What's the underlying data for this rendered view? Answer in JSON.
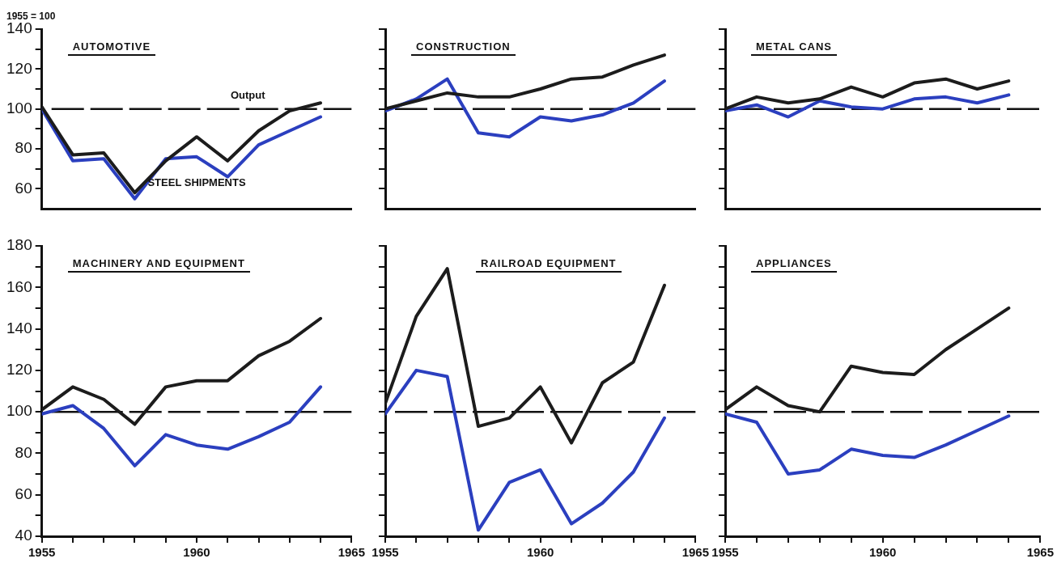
{
  "chart_data": [
    {
      "type": "line",
      "title": "AUTOMOTIVE",
      "ylabel": "1955 = 100",
      "tick_labels": "y",
      "x": [
        1955,
        1956,
        1957,
        1958,
        1959,
        1960,
        1961,
        1962,
        1963,
        1964
      ],
      "series": [
        {
          "name": "Output",
          "color": "#1c1c1c",
          "values": [
            101,
            77,
            78,
            58,
            74,
            86,
            74,
            89,
            99,
            103
          ]
        },
        {
          "name": "STEEL SHIPMENTS",
          "color": "#2b3fbf",
          "values": [
            100,
            74,
            75,
            55,
            75,
            76,
            66,
            82,
            89,
            96
          ]
        }
      ],
      "xlim": [
        1955,
        1965
      ],
      "xticks": [
        1955,
        1960,
        1965
      ],
      "ylim": [
        50,
        140
      ],
      "yticks": [
        60,
        {
          "value": 70,
          "label": null
        },
        80,
        {
          "value": 90,
          "label": null
        },
        100,
        {
          "value": 110,
          "label": null
        },
        120,
        {
          "value": 130,
          "label": null
        },
        140
      ],
      "ref_lines": [
        {
          "axis": "y",
          "value": 100,
          "line_style": "dashed"
        }
      ]
    },
    {
      "type": "line",
      "title": "CONSTRUCTION",
      "tick_labels": false,
      "x": [
        1955,
        1956,
        1957,
        1958,
        1959,
        1960,
        1961,
        1962,
        1963,
        1964
      ],
      "series": [
        {
          "color": "#1c1c1c",
          "values": [
            100,
            104,
            108,
            106,
            106,
            110,
            115,
            116,
            122,
            127
          ]
        },
        {
          "color": "#2b3fbf",
          "values": [
            99,
            105,
            115,
            88,
            86,
            96,
            94,
            97,
            103,
            114
          ]
        }
      ],
      "xlim": [
        1955,
        1965
      ],
      "xticks": [
        1955,
        1960,
        1965
      ],
      "ylim": [
        50,
        140
      ],
      "yticks": [
        60,
        {
          "value": 70,
          "label": null
        },
        80,
        {
          "value": 90,
          "label": null
        },
        100,
        {
          "value": 110,
          "label": null
        },
        120,
        {
          "value": 130,
          "label": null
        },
        140
      ],
      "ref_lines": [
        {
          "axis": "y",
          "value": 100,
          "line_style": "dashed"
        }
      ]
    },
    {
      "type": "line",
      "title": "METAL CANS",
      "tick_labels": false,
      "x": [
        1955,
        1956,
        1957,
        1958,
        1959,
        1960,
        1961,
        1962,
        1963,
        1964
      ],
      "series": [
        {
          "color": "#1c1c1c",
          "values": [
            100,
            106,
            103,
            105,
            111,
            106,
            113,
            115,
            110,
            114
          ]
        },
        {
          "color": "#2b3fbf",
          "values": [
            99,
            102,
            96,
            104,
            101,
            100,
            105,
            106,
            103,
            107
          ]
        }
      ],
      "xlim": [
        1955,
        1965
      ],
      "xticks": [
        1955,
        1960,
        1965
      ],
      "ylim": [
        50,
        140
      ],
      "yticks": [
        60,
        {
          "value": 70,
          "label": null
        },
        80,
        {
          "value": 90,
          "label": null
        },
        100,
        {
          "value": 110,
          "label": null
        },
        120,
        {
          "value": 130,
          "label": null
        },
        140
      ],
      "ref_lines": [
        {
          "axis": "y",
          "value": 100,
          "line_style": "dashed"
        }
      ]
    },
    {
      "type": "line",
      "title": "MACHINERY AND EQUIPMENT",
      "x": [
        1955,
        1956,
        1957,
        1958,
        1959,
        1960,
        1961,
        1962,
        1963,
        1964
      ],
      "series": [
        {
          "color": "#1c1c1c",
          "values": [
            101,
            112,
            106,
            94,
            112,
            115,
            115,
            127,
            134,
            145
          ]
        },
        {
          "color": "#2b3fbf",
          "values": [
            99,
            103,
            92,
            74,
            89,
            84,
            82,
            88,
            95,
            112
          ]
        }
      ],
      "xlim": [
        1955,
        1965
      ],
      "xticks": [
        1955,
        {
          "value": 1956,
          "label": null
        },
        {
          "value": 1957,
          "label": null
        },
        {
          "value": 1958,
          "label": null
        },
        {
          "value": 1959,
          "label": null
        },
        1960,
        {
          "value": 1961,
          "label": null
        },
        {
          "value": 1962,
          "label": null
        },
        {
          "value": 1963,
          "label": null
        },
        {
          "value": 1964,
          "label": null
        },
        1965
      ],
      "ylim": [
        40,
        180
      ],
      "yticks": [
        40,
        {
          "value": 50,
          "label": null
        },
        60,
        {
          "value": 70,
          "label": null
        },
        80,
        {
          "value": 90,
          "label": null
        },
        100,
        {
          "value": 110,
          "label": null
        },
        120,
        {
          "value": 130,
          "label": null
        },
        140,
        {
          "value": 150,
          "label": null
        },
        160,
        {
          "value": 170,
          "label": null
        },
        180
      ],
      "ref_lines": [
        {
          "axis": "y",
          "value": 100,
          "line_style": "dashed"
        }
      ]
    },
    {
      "type": "line",
      "title": "RAILROAD EQUIPMENT",
      "tick_labels": "x",
      "x": [
        1955,
        1956,
        1957,
        1958,
        1959,
        1960,
        1961,
        1962,
        1963,
        1964
      ],
      "series": [
        {
          "color": "#1c1c1c",
          "values": [
            104,
            146,
            169,
            93,
            97,
            112,
            85,
            114,
            124,
            161
          ]
        },
        {
          "color": "#2b3fbf",
          "values": [
            99,
            120,
            117,
            43,
            66,
            72,
            46,
            56,
            71,
            97
          ]
        }
      ],
      "xlim": [
        1955,
        1965
      ],
      "xticks": [
        1955,
        {
          "value": 1956,
          "label": null
        },
        {
          "value": 1957,
          "label": null
        },
        {
          "value": 1958,
          "label": null
        },
        {
          "value": 1959,
          "label": null
        },
        1960,
        {
          "value": 1961,
          "label": null
        },
        {
          "value": 1962,
          "label": null
        },
        {
          "value": 1963,
          "label": null
        },
        {
          "value": 1964,
          "label": null
        },
        1965
      ],
      "ylim": [
        40,
        180
      ],
      "yticks": [
        40,
        {
          "value": 50,
          "label": null
        },
        60,
        {
          "value": 70,
          "label": null
        },
        80,
        {
          "value": 90,
          "label": null
        },
        100,
        {
          "value": 110,
          "label": null
        },
        120,
        {
          "value": 130,
          "label": null
        },
        140,
        {
          "value": 150,
          "label": null
        },
        160,
        {
          "value": 170,
          "label": null
        },
        180
      ],
      "ref_lines": [
        {
          "axis": "y",
          "value": 100,
          "line_style": "dashed"
        }
      ]
    },
    {
      "type": "line",
      "title": "APPLIANCES",
      "tick_labels": "x",
      "x": [
        1955,
        1956,
        1957,
        1958,
        1959,
        1960,
        1961,
        1962,
        1963,
        1964
      ],
      "series": [
        {
          "color": "#1c1c1c",
          "values": [
            101,
            112,
            103,
            100,
            122,
            119,
            118,
            130,
            140,
            150
          ]
        },
        {
          "color": "#2b3fbf",
          "values": [
            99,
            95,
            70,
            72,
            82,
            79,
            78,
            84,
            91,
            98
          ]
        }
      ],
      "xlim": [
        1955,
        1965
      ],
      "xticks": [
        1955,
        {
          "value": 1956,
          "label": null
        },
        {
          "value": 1957,
          "label": null
        },
        {
          "value": 1958,
          "label": null
        },
        {
          "value": 1959,
          "label": null
        },
        1960,
        {
          "value": 1961,
          "label": null
        },
        {
          "value": 1962,
          "label": null
        },
        {
          "value": 1963,
          "label": null
        },
        {
          "value": 1964,
          "label": null
        },
        1965
      ],
      "ylim": [
        40,
        180
      ],
      "yticks": [
        40,
        {
          "value": 50,
          "label": null
        },
        60,
        {
          "value": 70,
          "label": null
        },
        80,
        {
          "value": 90,
          "label": null
        },
        100,
        {
          "value": 110,
          "label": null
        },
        120,
        {
          "value": 130,
          "label": null
        },
        140,
        {
          "value": 150,
          "label": null
        },
        160,
        {
          "value": 170,
          "label": null
        },
        180
      ],
      "ref_lines": [
        {
          "axis": "y",
          "value": 100,
          "line_style": "dashed"
        }
      ]
    }
  ]
}
